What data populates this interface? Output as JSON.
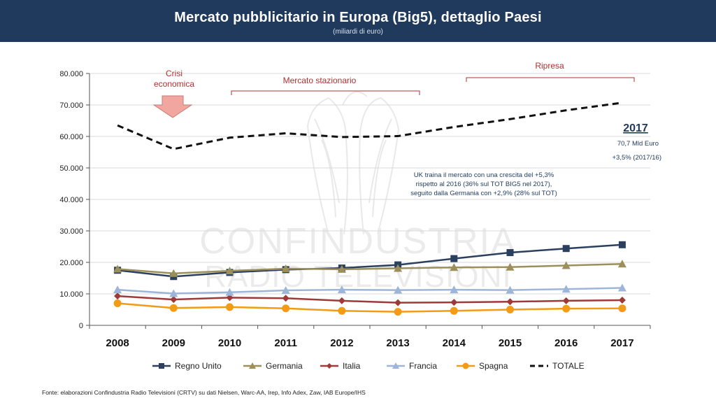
{
  "header": {
    "title": "Mercato pubblicitario in Europa (Big5), dettaglio Paesi",
    "subtitle": "(miliardi di euro)"
  },
  "chart_data": {
    "type": "line",
    "title": "Mercato pubblicitario in Europa (Big5), dettaglio Paesi",
    "ylabel": "",
    "xlabel": "",
    "ylim": [
      0,
      80000
    ],
    "y_ticks": [
      "0",
      "10.000",
      "20.000",
      "30.000",
      "40.000",
      "50.000",
      "60.000",
      "70.000",
      "80.000"
    ],
    "categories": [
      "2008",
      "2009",
      "2010",
      "2011",
      "2012",
      "2013",
      "2014",
      "2015",
      "2016",
      "2017"
    ],
    "grid": true,
    "legend_position": "bottom",
    "series": [
      {
        "name": "Regno Unito",
        "color": "#2b3f5e",
        "marker": "square",
        "values": [
          17500,
          15500,
          16800,
          17700,
          18200,
          19200,
          21200,
          23100,
          24400,
          25600
        ]
      },
      {
        "name": "Germania",
        "color": "#9c8f5a",
        "marker": "triangle",
        "values": [
          17900,
          16500,
          17300,
          18000,
          17800,
          18100,
          18400,
          18500,
          19000,
          19500
        ]
      },
      {
        "name": "Italia",
        "color": "#9e3a38",
        "marker": "diamond",
        "values": [
          9300,
          8200,
          8800,
          8600,
          7800,
          7200,
          7300,
          7500,
          7800,
          8000
        ]
      },
      {
        "name": "Francia",
        "color": "#9db5d9",
        "marker": "triangle",
        "values": [
          11300,
          10100,
          10500,
          11100,
          11300,
          11200,
          11300,
          11200,
          11500,
          11900
        ]
      },
      {
        "name": "Spagna",
        "color": "#f29b15",
        "marker": "circle",
        "values": [
          7000,
          5500,
          5800,
          5400,
          4600,
          4300,
          4600,
          5000,
          5300,
          5400
        ]
      },
      {
        "name": "TOTALE",
        "color": "#111111",
        "marker": "none",
        "dashed": true,
        "values": [
          63500,
          56000,
          59600,
          61000,
          59800,
          60100,
          63000,
          65500,
          68300,
          70700
        ]
      }
    ],
    "annotations": {
      "crisi": "Crisi economica",
      "stazionario": "Mercato stazionario",
      "ripresa": "Ripresa",
      "year": "2017",
      "total_value": "70,7 Mld Euro",
      "growth": "+3,5% (2017/16)",
      "note_lines": [
        "UK traina il mercato con una crescita del +5,3%",
        "rispetto al 2016  (36% sul TOT BIG5  nel 2017),",
        "seguito dalla Germania con +2,9% (28% sul TOT)"
      ]
    }
  },
  "watermark": {
    "line1": "CONFINDUSTRIA",
    "line2": "RADIO TELEVISIONI"
  },
  "footer": {
    "source": "Fonte: elaborazioni Confindustria Radio Televisioni (CRTV) su dati Nielsen, Warc-AA, Irep, Info Adex, Zaw, IAB Europe/IHS"
  }
}
